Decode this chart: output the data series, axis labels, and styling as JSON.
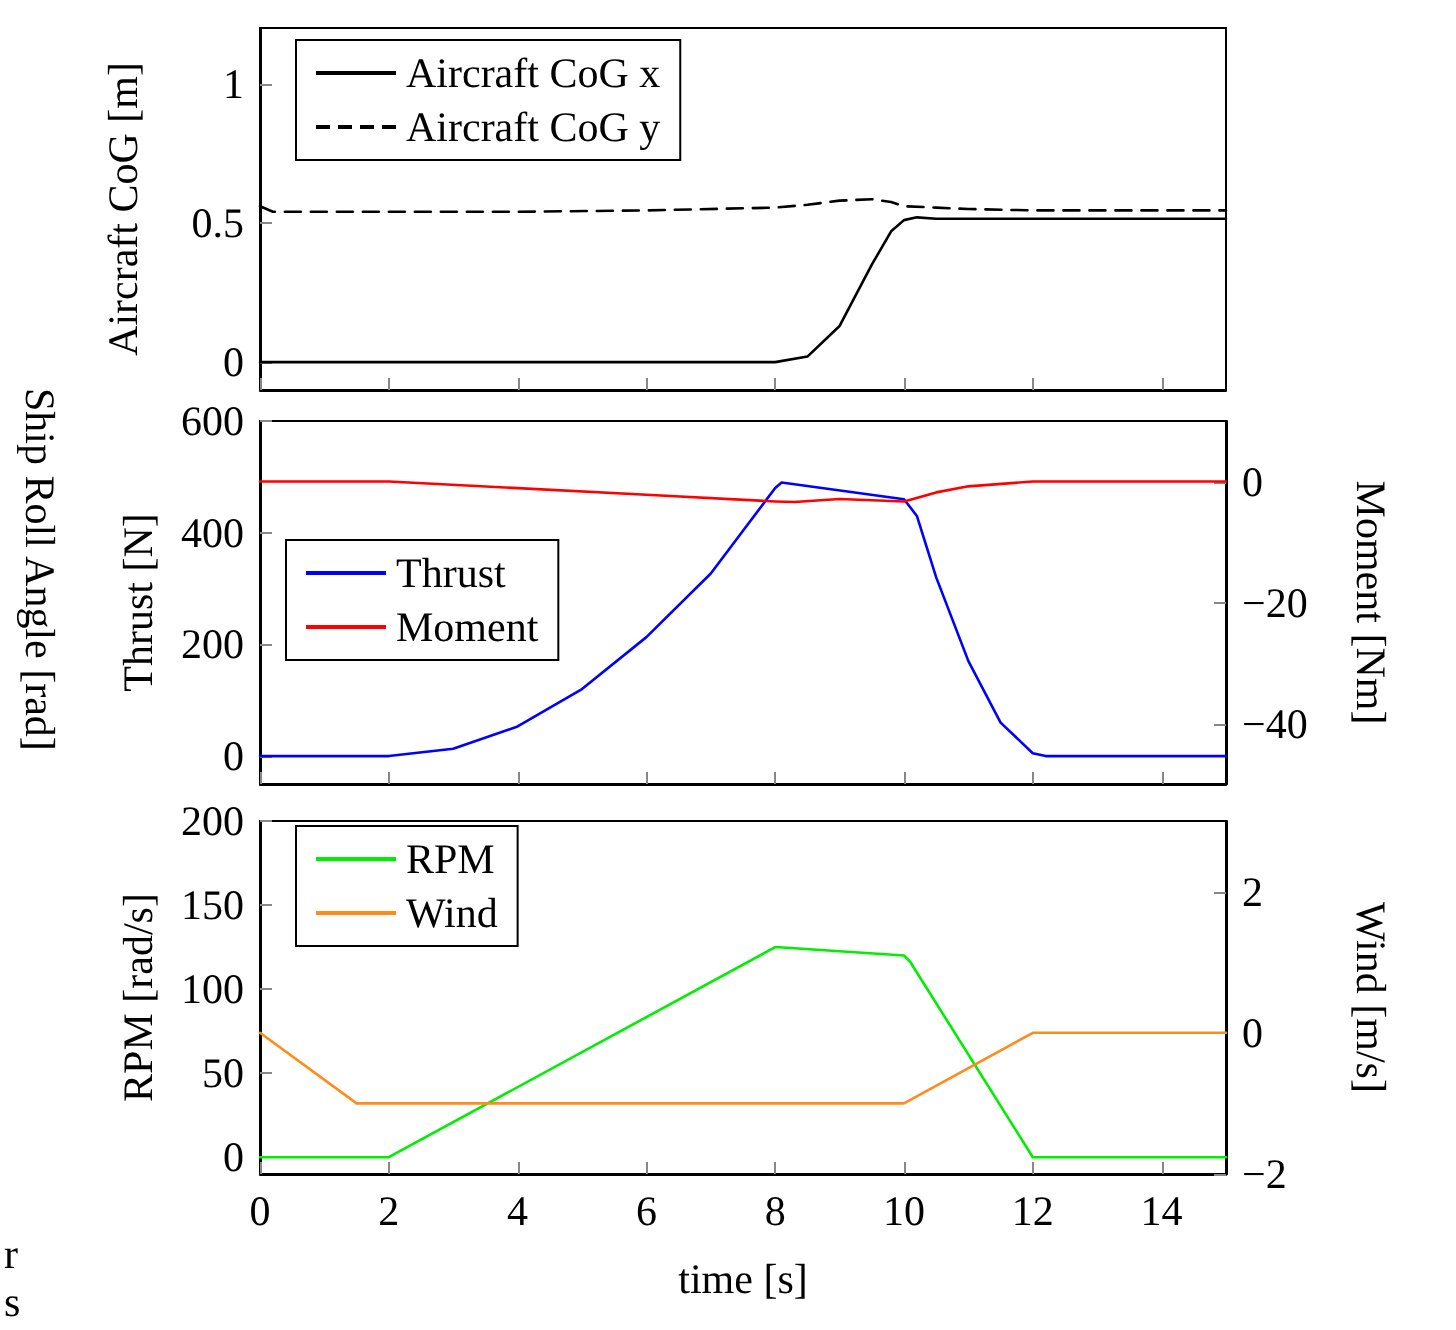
{
  "chart_data": [
    {
      "type": "line",
      "ylabel": "Aircraft CoG [m]",
      "xlim": [
        0,
        15
      ],
      "xticks": [
        0,
        2,
        4,
        6,
        8,
        10,
        12,
        14
      ],
      "ylim": [
        -0.1,
        1.2
      ],
      "yticks": [
        0,
        0.5,
        1
      ],
      "tick_labels": "y",
      "legend": "top left",
      "marker": "none",
      "grid": false,
      "series": [
        {
          "name": "Aircraft CoG x",
          "color": "#000000",
          "line_style": "solid",
          "x": [
            0,
            2,
            4,
            6,
            8,
            8.5,
            9,
            9.5,
            9.8,
            10,
            10.2,
            10.5,
            12,
            15
          ],
          "values": [
            0,
            0,
            0,
            0,
            0,
            0.02,
            0.13,
            0.35,
            0.47,
            0.51,
            0.52,
            0.515,
            0.515,
            0.515
          ]
        },
        {
          "name": "Aircraft CoG y",
          "color": "#000000",
          "line_style": "dashed",
          "x": [
            0,
            0.2,
            2,
            4,
            6,
            8,
            8.5,
            9,
            9.5,
            9.8,
            10,
            10.5,
            11,
            12,
            15
          ],
          "values": [
            0.56,
            0.54,
            0.54,
            0.54,
            0.545,
            0.555,
            0.565,
            0.58,
            0.585,
            0.575,
            0.56,
            0.555,
            0.55,
            0.545,
            0.545
          ]
        }
      ]
    },
    {
      "type": "line",
      "ylabel": "Thrust [N]",
      "y2label": "Moment [Nm]",
      "annotations": [
        "Ship Roll Angle [rad]"
      ],
      "xlim": [
        0,
        15
      ],
      "xticks": [
        0,
        2,
        4,
        6,
        8,
        10,
        12,
        14
      ],
      "ylim": [
        -50,
        600
      ],
      "yticks": [
        0,
        200,
        400,
        600
      ],
      "y2lim": [
        -50,
        10
      ],
      "y2ticks": [
        -40,
        -20,
        0
      ],
      "tick_labels": "y",
      "legend": "left",
      "marker": "none",
      "grid": false,
      "series": [
        {
          "name": "Thrust",
          "color": "#0000ff",
          "x": [
            0,
            2,
            3,
            4,
            5,
            6,
            7,
            8,
            8.1,
            10,
            10.2,
            10.5,
            11,
            11.5,
            12,
            12.2,
            15
          ],
          "values": [
            0,
            0,
            13,
            53,
            120,
            213,
            327,
            480,
            490,
            460,
            430,
            320,
            170,
            60,
            5,
            0,
            0
          ]
        },
        {
          "name": "Moment",
          "color": "#ff0000",
          "axis": "y2",
          "x": [
            0,
            2,
            4,
            6,
            8,
            8.3,
            9,
            10,
            10.1,
            10.5,
            11,
            12,
            15
          ],
          "values": [
            0,
            0,
            -1.1,
            -2.2,
            -3.3,
            -3.4,
            -2.9,
            -3.3,
            -3,
            -1.8,
            -0.8,
            0,
            0
          ]
        }
      ]
    },
    {
      "type": "line",
      "xlabel": "time [s]",
      "ylabel": "RPM [rad/s]",
      "y2label": "Wind [m/s]",
      "annotations": [
        "r",
        "s"
      ],
      "xlim": [
        0,
        15
      ],
      "xticks": [
        0,
        2,
        4,
        6,
        8,
        10,
        12,
        14
      ],
      "ylim": [
        -10,
        200
      ],
      "yticks": [
        0,
        50,
        100,
        150,
        200
      ],
      "y2lim": [
        -2,
        3
      ],
      "y2ticks": [
        -2,
        0,
        2
      ],
      "legend": "top left",
      "marker": "none",
      "grid": false,
      "series": [
        {
          "name": "RPM",
          "color": "#00ee00",
          "x": [
            0,
            2,
            8,
            10,
            10.1,
            12,
            15
          ],
          "values": [
            0,
            0,
            125,
            120,
            116,
            0,
            0
          ]
        },
        {
          "name": "Wind",
          "color": "#ff8c1a",
          "axis": "y2",
          "x": [
            0,
            1.5,
            10,
            12,
            15
          ],
          "values": [
            0,
            -1,
            -1,
            0,
            0
          ]
        }
      ]
    }
  ]
}
